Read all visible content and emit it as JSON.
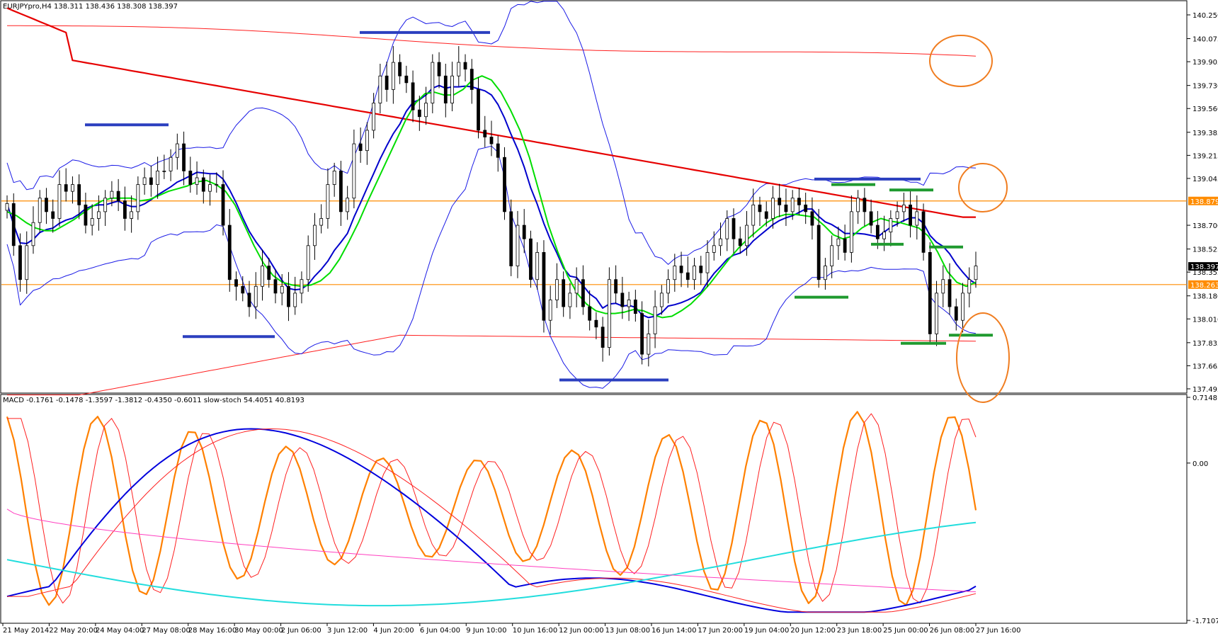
{
  "header": {
    "main_title": "EURJPYpro,H4  138.311 138.436 138.308 138.397",
    "sub_title": "MACD -0.1761 -0.1478 -1.3597 -1.3812 -0.4350 -0.6011  slow-stoch 54.4051 40.8193"
  },
  "colors": {
    "candle_bull": "#ffffff",
    "candle_bear": "#000000",
    "bollinger": "#1a1ae6",
    "ma_fast": "#00dd00",
    "ma_mid": "#0000cc",
    "ma_slow": "#e60000",
    "envelope": "#ff2020",
    "level_line": "#ff8c00",
    "annot_blue": "#2b3fbf",
    "annot_green": "#1f9a2f",
    "circle": "#f07d20",
    "stoch": "#ff8000",
    "stoch_signal": "#ff2020",
    "macd_main": "#0000dd",
    "macd_signal": "#ff2020",
    "macd_cyan": "#22dddd",
    "macd_magenta": "#ff40c0"
  },
  "chart_data": [
    {
      "type": "candlestick",
      "symbol": "EURJPYpro",
      "timeframe": "H4",
      "ohlc_header": [
        138.311,
        138.436,
        138.308,
        138.397
      ],
      "ylim": [
        137.4,
        140.37
      ],
      "y_ticks": [
        140.25,
        140.075,
        139.905,
        139.73,
        139.56,
        139.385,
        139.215,
        139.045,
        138.7,
        138.525,
        138.355,
        138.18,
        138.01,
        137.835,
        137.665,
        137.495
      ],
      "price_tags": [
        {
          "label": "138.879",
          "value": 138.879,
          "bg": "#ff8c00"
        },
        {
          "label": "138.397",
          "value": 138.397,
          "bg": "#000000"
        },
        {
          "label": "138.263",
          "value": 138.263,
          "bg": "#ff8c00"
        }
      ],
      "horizontal_levels": [
        138.879,
        138.263
      ],
      "closes": [
        138.86,
        138.55,
        138.3,
        138.55,
        138.72,
        138.9,
        138.8,
        138.75,
        139.0,
        138.95,
        139.0,
        138.85,
        138.7,
        138.75,
        138.8,
        138.9,
        138.95,
        138.88,
        138.75,
        138.8,
        139.0,
        139.05,
        139.0,
        139.1,
        139.1,
        139.2,
        139.3,
        139.1,
        139.0,
        139.05,
        138.95,
        139.0,
        139.0,
        138.7,
        138.3,
        138.25,
        138.2,
        138.1,
        138.25,
        138.4,
        138.3,
        138.2,
        138.25,
        138.1,
        138.2,
        138.3,
        138.55,
        138.7,
        138.75,
        139.0,
        139.1,
        138.8,
        138.9,
        139.3,
        139.25,
        139.4,
        139.6,
        139.8,
        139.7,
        139.9,
        139.8,
        139.75,
        139.55,
        139.5,
        139.6,
        139.9,
        139.8,
        139.6,
        139.8,
        139.9,
        139.85,
        139.7,
        139.4,
        139.35,
        139.3,
        139.2,
        138.8,
        138.4,
        138.7,
        138.6,
        138.3,
        138.5,
        138.0,
        138.15,
        138.3,
        138.1,
        138.2,
        138.3,
        138.1,
        138.0,
        137.95,
        137.8,
        138.3,
        138.2,
        138.1,
        138.15,
        138.05,
        137.75,
        137.9,
        138.1,
        138.2,
        138.3,
        138.4,
        138.35,
        138.3,
        138.4,
        138.35,
        138.5,
        138.55,
        138.6,
        138.75,
        138.6,
        138.55,
        138.7,
        138.85,
        138.8,
        138.75,
        138.9,
        138.85,
        138.8,
        138.9,
        138.85,
        138.8,
        138.7,
        138.3,
        138.4,
        138.55,
        138.6,
        138.5,
        138.8,
        138.9,
        138.8,
        138.7,
        138.6,
        138.65,
        138.75,
        138.8,
        138.85,
        138.7,
        138.8,
        138.5,
        137.9,
        138.2,
        138.3,
        138.1,
        138.0,
        138.2,
        138.3,
        138.4
      ],
      "fast_ma": [
        138.8,
        138.77,
        138.72,
        138.68,
        138.66,
        138.66,
        138.7,
        138.74,
        138.79,
        138.84,
        138.88,
        138.9,
        138.9,
        138.9,
        138.88,
        138.89,
        138.92,
        138.95,
        138.97,
        138.99,
        139.02,
        139.03,
        139.0,
        138.95,
        138.85,
        138.7,
        138.55,
        138.42,
        138.33,
        138.28,
        138.26,
        138.25,
        138.26,
        138.29,
        138.35,
        138.45,
        138.58,
        138.72,
        138.88,
        139.03,
        139.18,
        139.33,
        139.48,
        139.6,
        139.67,
        139.68,
        139.66,
        139.66,
        139.7,
        139.77,
        139.8,
        139.77,
        139.68,
        139.55,
        139.4,
        139.2,
        138.95,
        138.7,
        138.5,
        138.33,
        138.2,
        138.12,
        138.07,
        138.05,
        138.05,
        138.06,
        138.08,
        138.07,
        138.04,
        138.02,
        138.03,
        138.07,
        138.12,
        138.19,
        138.27,
        138.36,
        138.45,
        138.53,
        138.6,
        138.66,
        138.72,
        138.76,
        138.78,
        138.78,
        138.77,
        138.76,
        138.7,
        138.63,
        138.6,
        138.62,
        138.68,
        138.72,
        138.75,
        138.73,
        138.72,
        138.7,
        138.68,
        138.62,
        138.5,
        138.36,
        138.28,
        138.25,
        138.28
      ]
    },
    {
      "type": "line",
      "indicator": "MACD / slow-stoch",
      "macd_values": [
        -0.1761,
        -0.1478,
        -1.3597,
        -1.3812,
        -0.435,
        -0.6011
      ],
      "stoch_values": [
        54.4051,
        40.8193
      ],
      "ylim": [
        -1.7107,
        0.7148
      ],
      "y_ticks": [
        0.7148,
        0.0,
        -1.7107
      ],
      "x_ticks": [
        "21 May 2014",
        "22 May 20:00",
        "24 May 04:00",
        "27 May 08:00",
        "28 May 16:00",
        "30 May 00:00",
        "2 Jun 06:00",
        "3 Jun 12:00",
        "4 Jun 20:00",
        "6 Jun 04:00",
        "9 Jun 10:00",
        "10 Jun 16:00",
        "12 Jun 00:00",
        "13 Jun 08:00",
        "16 Jun 14:00",
        "17 Jun 20:00",
        "19 Jun 04:00",
        "20 Jun 12:00",
        "23 Jun 18:00",
        "25 Jun 00:00",
        "26 Jun 08:00",
        "27 Jun 16:00"
      ]
    }
  ]
}
